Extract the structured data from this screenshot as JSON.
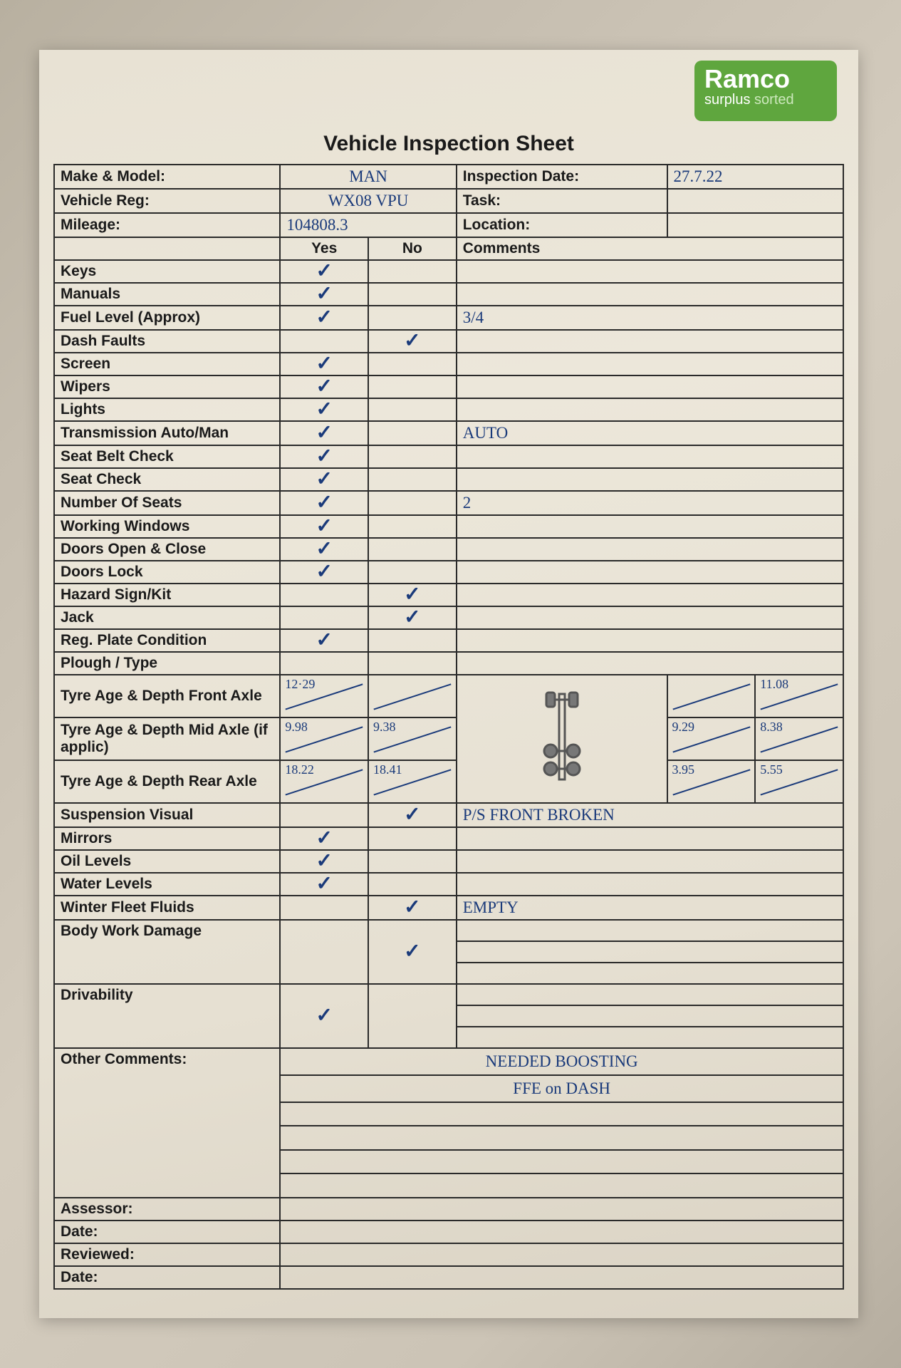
{
  "colors": {
    "logo_bg": "#5fa63e",
    "ink": "#1a3a7a",
    "print": "#1a1a1a",
    "border": "#2a2a2a",
    "paper": "#e8e2d4"
  },
  "logo": {
    "brand": "Ramco",
    "tag_a": "surplus",
    "tag_b": "sorted"
  },
  "title": "Vehicle Inspection Sheet",
  "header": {
    "make_label": "Make & Model:",
    "make_value": "MAN",
    "insp_label": "Inspection Date:",
    "insp_value": "27.7.22",
    "reg_label": "Vehicle Reg:",
    "reg_value": "WX08 VPU",
    "task_label": "Task:",
    "task_value": "",
    "mileage_label": "Mileage:",
    "mileage_value": "104808.3",
    "loc_label": "Location:",
    "loc_value": ""
  },
  "cols": {
    "yes": "Yes",
    "no": "No",
    "comments": "Comments"
  },
  "rows": [
    {
      "label": "Keys",
      "yes": "✓",
      "no": "",
      "comment": ""
    },
    {
      "label": "Manuals",
      "yes": "✓",
      "no": "",
      "comment": ""
    },
    {
      "label": "Fuel Level (Approx)",
      "yes": "✓",
      "no": "",
      "comment": "3/4"
    },
    {
      "label": "Dash Faults",
      "yes": "",
      "no": "✓",
      "comment": ""
    },
    {
      "label": "Screen",
      "yes": "✓",
      "no": "",
      "comment": ""
    },
    {
      "label": "Wipers",
      "yes": "✓",
      "no": "",
      "comment": ""
    },
    {
      "label": "Lights",
      "yes": "✓",
      "no": "",
      "comment": ""
    },
    {
      "label": "Transmission Auto/Man",
      "yes": "✓",
      "no": "",
      "comment": "AUTO"
    },
    {
      "label": "Seat Belt Check",
      "yes": "✓",
      "no": "",
      "comment": ""
    },
    {
      "label": "Seat Check",
      "yes": "✓",
      "no": "",
      "comment": ""
    },
    {
      "label": "Number Of Seats",
      "yes": "✓",
      "no": "",
      "comment": "2"
    },
    {
      "label": "Working Windows",
      "yes": "✓",
      "no": "",
      "comment": ""
    },
    {
      "label": "Doors Open & Close",
      "yes": "✓",
      "no": "",
      "comment": ""
    },
    {
      "label": "Doors Lock",
      "yes": "✓",
      "no": "",
      "comment": ""
    },
    {
      "label": "Hazard Sign/Kit",
      "yes": "",
      "no": "✓",
      "comment": ""
    },
    {
      "label": "Jack",
      "yes": "",
      "no": "✓",
      "comment": ""
    },
    {
      "label": "Reg. Plate Condition",
      "yes": "✓",
      "no": "",
      "comment": ""
    },
    {
      "label": "Plough / Type",
      "yes": "",
      "no": "",
      "comment": ""
    }
  ],
  "tyres": {
    "front": {
      "label": "Tyre Age & Depth Front Axle",
      "yes": "12·29",
      "no": "",
      "r1": "",
      "r2": "11.08"
    },
    "mid": {
      "label": "Tyre Age & Depth Mid Axle (if applic)",
      "yes": "9.98",
      "no": "9.38",
      "r1": "9.29",
      "r2": "8.38"
    },
    "rear": {
      "label": "Tyre Age & Depth Rear Axle",
      "yes": "18.22",
      "no": "18.41",
      "r1": "3.95",
      "r2": "5.55"
    }
  },
  "rows2": [
    {
      "label": "Suspension Visual",
      "yes": "",
      "no": "✓",
      "comment": "P/S  FRONT  BROKEN"
    },
    {
      "label": "Mirrors",
      "yes": "✓",
      "no": "",
      "comment": ""
    },
    {
      "label": "Oil Levels",
      "yes": "✓",
      "no": "",
      "comment": ""
    },
    {
      "label": "Water Levels",
      "yes": "✓",
      "no": "",
      "comment": ""
    },
    {
      "label": "Winter Fleet Fluids",
      "yes": "",
      "no": "✓",
      "comment": "EMPTY"
    }
  ],
  "body_damage": {
    "label": "Body Work Damage",
    "no": "✓"
  },
  "drivability": {
    "label": "Drivability",
    "yes": "✓"
  },
  "other": {
    "label": "Other Comments:",
    "line1": "NEEDED   BOOSTING",
    "line2": "FFE   on  DASH"
  },
  "footer": {
    "assessor": "Assessor:",
    "date1": "Date:",
    "reviewed": "Reviewed:",
    "date2": "Date:"
  }
}
